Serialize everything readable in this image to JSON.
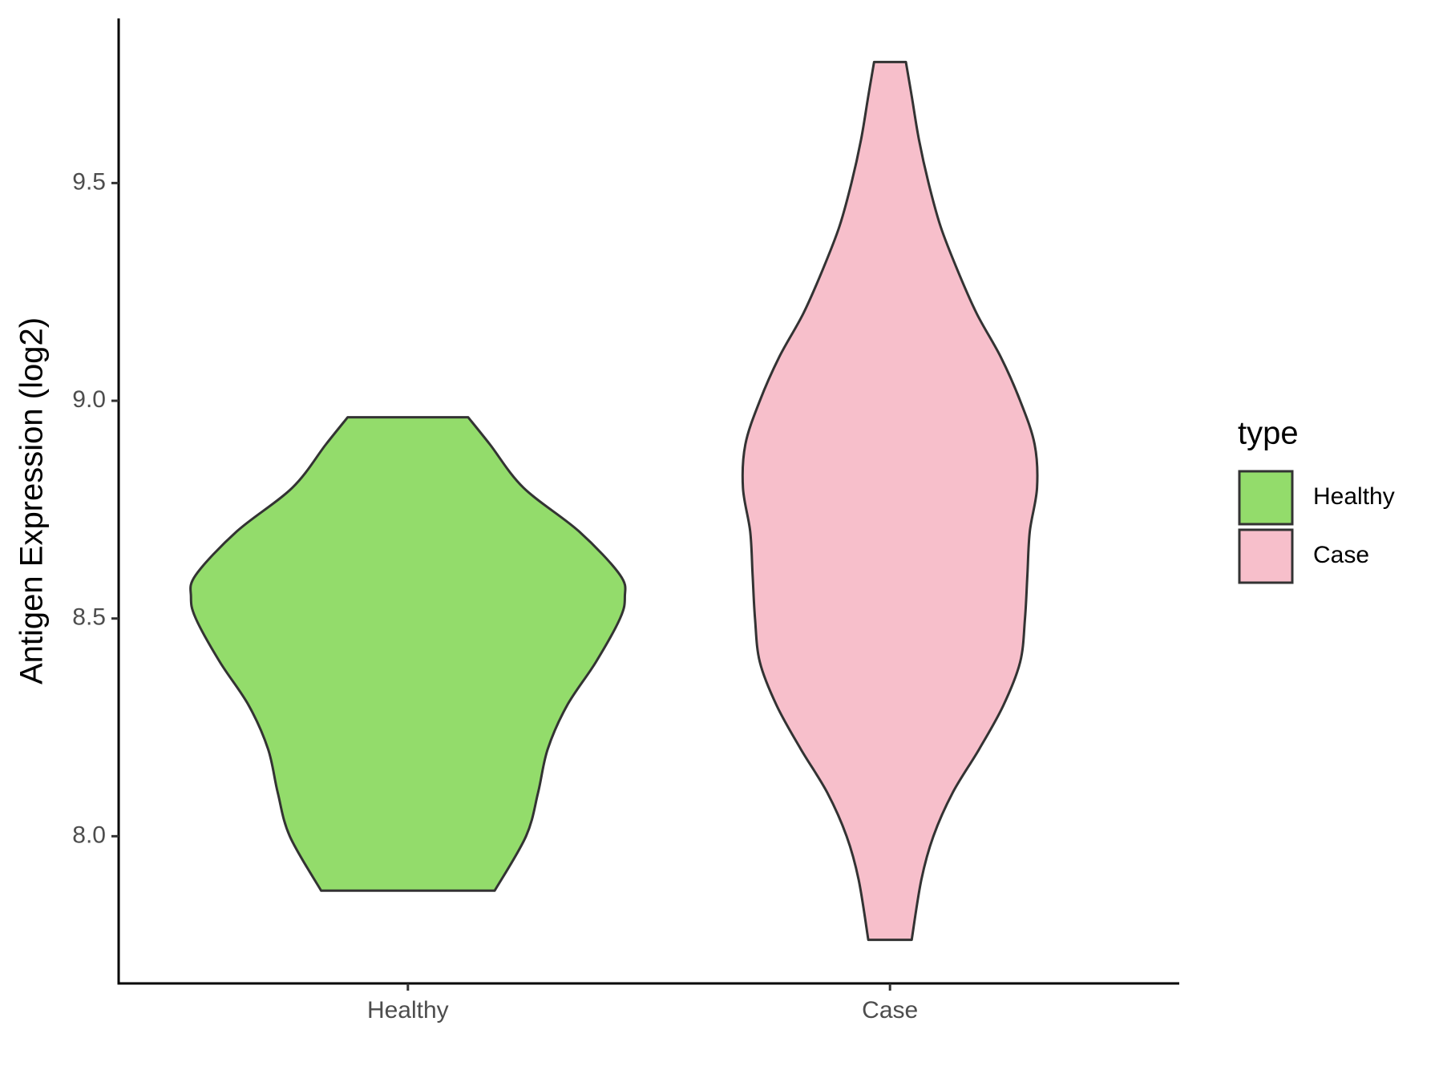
{
  "chart_data": {
    "type": "violin",
    "y_label": "Antigen Expression (log2)",
    "categories": [
      "Healthy",
      "Case"
    ],
    "ylim": [
      7.662,
      9.878
    ],
    "yticks": [
      {
        "value": 8.0,
        "label": "8.0"
      },
      {
        "value": 8.5,
        "label": "8.5"
      },
      {
        "value": 9.0,
        "label": "9.0"
      },
      {
        "value": 9.5,
        "label": "9.5"
      }
    ],
    "legend_title": "type",
    "legend_position": "right",
    "series": [
      {
        "name": "Healthy",
        "color": "#93dc6b",
        "y": [
          7.875,
          8.0,
          8.1,
          8.2,
          8.3,
          8.4,
          8.5,
          8.55,
          8.6,
          8.7,
          8.8,
          8.9,
          8.962
        ],
        "half_widths": [
          0.18,
          0.245,
          0.27,
          0.29,
          0.33,
          0.39,
          0.44,
          0.45,
          0.44,
          0.355,
          0.24,
          0.17,
          0.125
        ]
      },
      {
        "name": "Case",
        "color": "#f7bfcb",
        "y": [
          7.762,
          7.9,
          8.0,
          8.1,
          8.2,
          8.3,
          8.4,
          8.5,
          8.6,
          8.7,
          8.8,
          8.9,
          9.0,
          9.1,
          9.2,
          9.3,
          9.4,
          9.5,
          9.6,
          9.7,
          9.778
        ],
        "half_widths": [
          0.045,
          0.065,
          0.09,
          0.13,
          0.185,
          0.235,
          0.27,
          0.28,
          0.285,
          0.29,
          0.305,
          0.3,
          0.27,
          0.23,
          0.18,
          0.14,
          0.105,
          0.08,
          0.06,
          0.045,
          0.033
        ]
      }
    ]
  }
}
